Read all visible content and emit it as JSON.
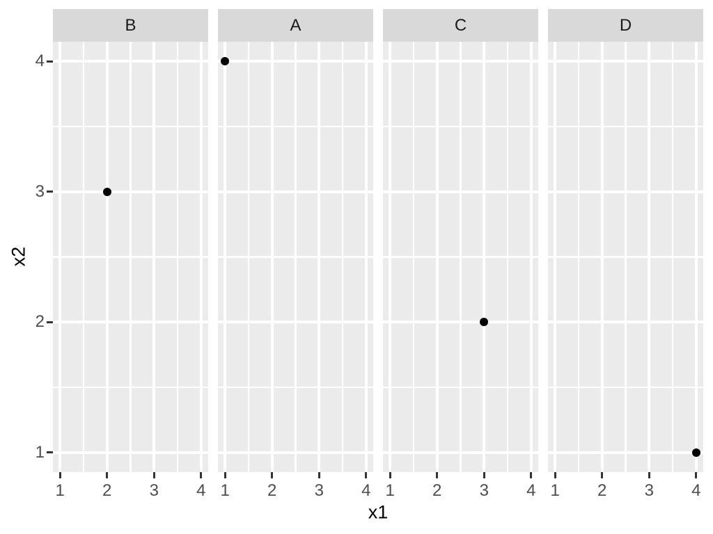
{
  "chart_data": {
    "type": "scatter",
    "title": "",
    "xlabel": "x1",
    "ylabel": "x2",
    "facet_labels": [
      "B",
      "A",
      "C",
      "D"
    ],
    "facets": [
      {
        "label": "B",
        "points": [
          {
            "x": 2,
            "y": 3
          }
        ]
      },
      {
        "label": "A",
        "points": [
          {
            "x": 1,
            "y": 4
          }
        ]
      },
      {
        "label": "C",
        "points": [
          {
            "x": 3,
            "y": 2
          }
        ]
      },
      {
        "label": "D",
        "points": [
          {
            "x": 4,
            "y": 1
          }
        ]
      }
    ],
    "x_ticks": [
      "1",
      "2",
      "3",
      "4"
    ],
    "y_ticks": [
      "1",
      "2",
      "3",
      "4"
    ],
    "x_tick_values": [
      1,
      2,
      3,
      4
    ],
    "y_tick_values": [
      1,
      2,
      3,
      4
    ],
    "x_minor_values": [
      1.5,
      2.5,
      3.5
    ],
    "y_minor_values": [
      1.5,
      2.5,
      3.5
    ],
    "x_domain": [
      0.85,
      4.15
    ],
    "y_domain": [
      0.85,
      4.15
    ],
    "grid": "major+minor",
    "legend": "none",
    "style": "ggplot2-theme-grey",
    "colors": {
      "background": "#FFFFFF",
      "panel_bg": "#EBEBEB",
      "strip_bg": "#D9D9D9",
      "grid": "#FFFFFF",
      "tick_mark": "#333333",
      "axis_text": "#4D4D4D",
      "strip_text": "#1A1A1A",
      "axis_title": "#000000",
      "point": "#000000"
    }
  }
}
